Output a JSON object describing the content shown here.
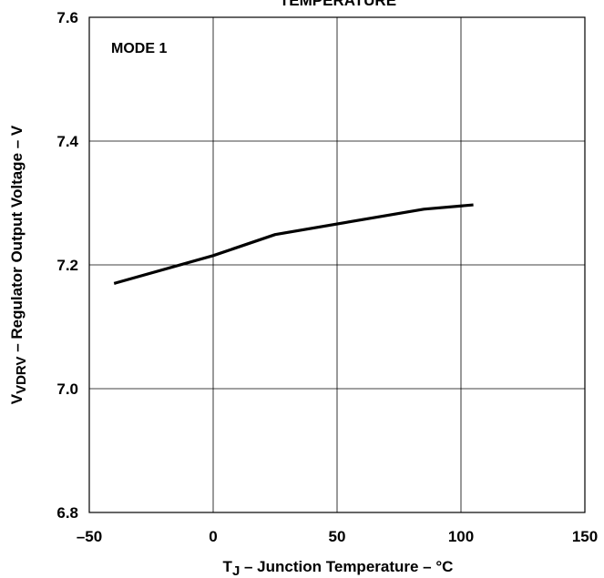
{
  "chart_data": {
    "type": "line",
    "title": "TEMPERATURE",
    "annotation": "MODE 1",
    "xlabel": {
      "main": "T",
      "sub": "J",
      "rest": " – Junction Temperature – °C"
    },
    "ylabel": {
      "main": "V",
      "sub": "VDRV",
      "rest": " – Regulator Output Voltage – V"
    },
    "xlim": [
      -50,
      150
    ],
    "ylim": [
      6.8,
      7.6
    ],
    "xticks": [
      -50,
      0,
      50,
      100,
      150
    ],
    "yticks": [
      6.8,
      7.0,
      7.2,
      7.4,
      7.6
    ],
    "xtick_labels": [
      "–50",
      "0",
      "50",
      "100",
      "150"
    ],
    "ytick_labels": [
      "6.8",
      "7.0",
      "7.2",
      "7.4",
      "7.6"
    ],
    "grid": true,
    "series": [
      {
        "x": [
          -40,
          0,
          25,
          85,
          105
        ],
        "y": [
          7.17,
          7.215,
          7.249,
          7.29,
          7.297
        ]
      }
    ]
  }
}
